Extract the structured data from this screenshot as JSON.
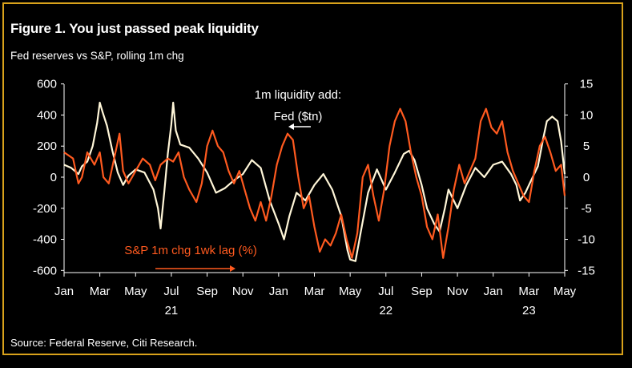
{
  "figure": {
    "title": "Figure 1. You just passed peak liquidity",
    "subtitle": "Fed reserves vs S&P, rolling 1m chg",
    "source": "Source: Federal Reserve, Citi Research."
  },
  "colors": {
    "background": "#000000",
    "frame": "#d9a21b",
    "sp_series": "#ff5a1f",
    "fed_series": "#fff6d8",
    "text": "#ffffff"
  },
  "chart_data": {
    "type": "line",
    "x_ticks": [
      "Jan",
      "Mar",
      "May",
      "Jul",
      "Sep",
      "Nov",
      "Jan",
      "Mar",
      "May",
      "Jul",
      "Sep",
      "Nov",
      "Jan",
      "Mar",
      "May"
    ],
    "year_labels": [
      {
        "label": "21",
        "month_index": 6
      },
      {
        "label": "22",
        "month_index": 18
      },
      {
        "label": "23",
        "month_index": 26
      }
    ],
    "xlim_months": [
      0,
      28
    ],
    "y_left": {
      "lim": [
        -650,
        650
      ],
      "ticks": [
        -600,
        -400,
        -200,
        0,
        200,
        400,
        600
      ]
    },
    "y_right": {
      "lim": [
        -16.25,
        16.25
      ],
      "ticks": [
        -15,
        -10,
        -5,
        0,
        5,
        10,
        15
      ]
    },
    "annotations": {
      "fed_label_line1": "1m liquidity add:",
      "fed_label_line2": "Fed ($tn)",
      "sp_label": "S&P 1m chg 1wk lag (%)"
    },
    "grid": false,
    "series": [
      {
        "name": "Fed",
        "axis": "left",
        "color": "#fff6d8",
        "points": [
          [
            0,
            80
          ],
          [
            0.4,
            60
          ],
          [
            0.8,
            20
          ],
          [
            1.0,
            70
          ],
          [
            1.3,
            100
          ],
          [
            1.6,
            200
          ],
          [
            1.85,
            350
          ],
          [
            2.0,
            480
          ],
          [
            2.15,
            420
          ],
          [
            2.4,
            330
          ],
          [
            2.7,
            170
          ],
          [
            3.0,
            30
          ],
          [
            3.3,
            -50
          ],
          [
            3.6,
            10
          ],
          [
            4.0,
            50
          ],
          [
            4.5,
            30
          ],
          [
            5.0,
            -80
          ],
          [
            5.25,
            -200
          ],
          [
            5.4,
            -330
          ],
          [
            5.6,
            -100
          ],
          [
            5.8,
            150
          ],
          [
            6.0,
            340
          ],
          [
            6.1,
            480
          ],
          [
            6.25,
            300
          ],
          [
            6.5,
            210
          ],
          [
            7.0,
            190
          ],
          [
            7.5,
            120
          ],
          [
            8.0,
            30
          ],
          [
            8.5,
            -100
          ],
          [
            9.0,
            -70
          ],
          [
            9.5,
            -20
          ],
          [
            10.0,
            20
          ],
          [
            10.5,
            110
          ],
          [
            11.0,
            60
          ],
          [
            11.5,
            -150
          ],
          [
            12.0,
            -300
          ],
          [
            12.3,
            -400
          ],
          [
            12.6,
            -250
          ],
          [
            13.0,
            -100
          ],
          [
            13.5,
            -150
          ],
          [
            14.0,
            -50
          ],
          [
            14.5,
            20
          ],
          [
            15.0,
            -80
          ],
          [
            15.5,
            -250
          ],
          [
            15.85,
            -470
          ],
          [
            16.0,
            -530
          ],
          [
            16.3,
            -540
          ],
          [
            16.6,
            -350
          ],
          [
            17.0,
            -100
          ],
          [
            17.5,
            50
          ],
          [
            18.0,
            -80
          ],
          [
            18.5,
            30
          ],
          [
            19.0,
            150
          ],
          [
            19.3,
            170
          ],
          [
            19.6,
            110
          ],
          [
            20.0,
            -50
          ],
          [
            20.3,
            -200
          ],
          [
            20.7,
            -300
          ],
          [
            21.0,
            -350
          ],
          [
            21.3,
            -200
          ],
          [
            21.5,
            -80
          ],
          [
            22.0,
            -200
          ],
          [
            22.5,
            -50
          ],
          [
            23.0,
            60
          ],
          [
            23.5,
            0
          ],
          [
            24.0,
            80
          ],
          [
            24.5,
            100
          ],
          [
            25.0,
            20
          ],
          [
            25.3,
            -50
          ],
          [
            25.5,
            -150
          ],
          [
            25.8,
            -100
          ],
          [
            26.0,
            -50
          ],
          [
            26.5,
            70
          ],
          [
            26.8,
            250
          ],
          [
            27.0,
            360
          ],
          [
            27.3,
            390
          ],
          [
            27.6,
            360
          ],
          [
            27.8,
            230
          ],
          [
            28.0,
            20
          ]
        ]
      },
      {
        "name": "S&P",
        "axis": "right",
        "color": "#ff5a1f",
        "points": [
          [
            0,
            4
          ],
          [
            0.5,
            3
          ],
          [
            0.8,
            -1
          ],
          [
            1.0,
            0
          ],
          [
            1.3,
            4
          ],
          [
            1.7,
            2
          ],
          [
            2.0,
            4
          ],
          [
            2.2,
            0
          ],
          [
            2.5,
            -1
          ],
          [
            2.8,
            3
          ],
          [
            3.1,
            7
          ],
          [
            3.3,
            1
          ],
          [
            3.6,
            -1
          ],
          [
            4.0,
            1
          ],
          [
            4.4,
            3
          ],
          [
            4.8,
            2
          ],
          [
            5.1,
            -0.5
          ],
          [
            5.4,
            2
          ],
          [
            5.8,
            3
          ],
          [
            6.1,
            2.5
          ],
          [
            6.4,
            4
          ],
          [
            6.7,
            0
          ],
          [
            7.0,
            -2
          ],
          [
            7.4,
            -4
          ],
          [
            7.7,
            -1
          ],
          [
            8.0,
            5
          ],
          [
            8.3,
            7.5
          ],
          [
            8.6,
            5
          ],
          [
            8.9,
            4
          ],
          [
            9.2,
            1
          ],
          [
            9.5,
            -1
          ],
          [
            9.8,
            1
          ],
          [
            10.1,
            -2
          ],
          [
            10.4,
            -5
          ],
          [
            10.7,
            -7
          ],
          [
            11.0,
            -4
          ],
          [
            11.3,
            -7
          ],
          [
            11.6,
            -3
          ],
          [
            11.9,
            2
          ],
          [
            12.2,
            5
          ],
          [
            12.5,
            7
          ],
          [
            12.8,
            6
          ],
          [
            13.1,
            0
          ],
          [
            13.4,
            -5
          ],
          [
            13.7,
            -3
          ],
          [
            14.0,
            -8
          ],
          [
            14.3,
            -12
          ],
          [
            14.6,
            -10
          ],
          [
            14.9,
            -11
          ],
          [
            15.2,
            -9
          ],
          [
            15.5,
            -6
          ],
          [
            15.8,
            -10
          ],
          [
            16.1,
            -13
          ],
          [
            16.4,
            -9
          ],
          [
            16.7,
            0
          ],
          [
            17.0,
            2
          ],
          [
            17.3,
            -3
          ],
          [
            17.6,
            -7
          ],
          [
            17.9,
            -2
          ],
          [
            18.2,
            5
          ],
          [
            18.5,
            9
          ],
          [
            18.8,
            11
          ],
          [
            19.1,
            9
          ],
          [
            19.4,
            4
          ],
          [
            19.7,
            0
          ],
          [
            20.0,
            -3
          ],
          [
            20.3,
            -8
          ],
          [
            20.6,
            -10
          ],
          [
            20.9,
            -6
          ],
          [
            21.2,
            -13
          ],
          [
            21.5,
            -8
          ],
          [
            21.8,
            -2
          ],
          [
            22.1,
            2
          ],
          [
            22.4,
            -1
          ],
          [
            22.7,
            1
          ],
          [
            23.0,
            3
          ],
          [
            23.3,
            9
          ],
          [
            23.6,
            11
          ],
          [
            23.9,
            8
          ],
          [
            24.2,
            7
          ],
          [
            24.5,
            9
          ],
          [
            24.8,
            4
          ],
          [
            25.1,
            1
          ],
          [
            25.4,
            -1
          ],
          [
            25.7,
            -3
          ],
          [
            26.0,
            -4
          ],
          [
            26.3,
            1
          ],
          [
            26.6,
            5
          ],
          [
            26.9,
            6.5
          ],
          [
            27.2,
            4
          ],
          [
            27.5,
            1
          ],
          [
            27.8,
            2
          ],
          [
            28.0,
            -3
          ]
        ]
      }
    ]
  }
}
